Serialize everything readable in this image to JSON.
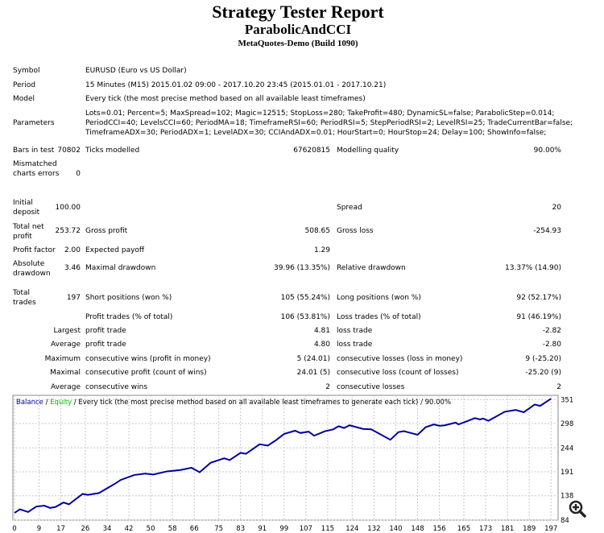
{
  "header": {
    "title": "Strategy Tester Report",
    "expert": "ParabolicAndCCI",
    "server": "MetaQuotes-Demo (Build 1090)"
  },
  "info": {
    "symbol_label": "Symbol",
    "symbol": "EURUSD (Euro vs US Dollar)",
    "period_label": "Period",
    "period": "15 Minutes (M15) 2015.01.02 09:00 - 2017.10.20 23:45 (2015.01.01 - 2017.10.21)",
    "model_label": "Model",
    "model": "Every tick (the most precise method based on all available least timeframes)",
    "params_label": "Parameters",
    "params": "Lots=0.01; Percent=5; MaxSpread=102; Magic=12515; StopLoss=280; TakeProfit=480; DynamicSL=false; ParabolicStep=0.014; PeriodCCI=40; LevelsCCI=60; PeriodMA=18; TimeframeRSI=60; PeriodRSI=5; StepPeriodRSI=2; LevelRSI=25; TradeCurrentBar=false; TimeframeADX=30; PeriodADX=1; LevelADX=30; CCIAndADX=0.01; HourStart=0; HourStop=24; Delay=100; ShowInfo=false;"
  },
  "stats": {
    "bars_label": "Bars in test",
    "bars": "70802",
    "ticks_label": "Ticks modelled",
    "ticks": "67620815",
    "quality_label": "Modelling quality",
    "quality": "90.00%",
    "mismatch_label": "Mismatched charts errors",
    "mismatch": "0",
    "deposit_label": "Initial deposit",
    "deposit": "100.00",
    "spread_label": "Spread",
    "spread": "20",
    "net_label": "Total net profit",
    "net": "253.72",
    "gross_profit_label": "Gross profit",
    "gross_profit": "508.65",
    "gross_loss_label": "Gross loss",
    "gross_loss": "-254.93",
    "pf_label": "Profit factor",
    "pf": "2.00",
    "payoff_label": "Expected payoff",
    "payoff": "1.29",
    "abs_dd_label": "Absolute drawdown",
    "abs_dd": "3.46",
    "max_dd_label": "Maximal drawdown",
    "max_dd": "39.96 (13.35%)",
    "rel_dd_label": "Relative drawdown",
    "rel_dd": "13.37% (14.90)",
    "trades_label": "Total trades",
    "trades": "197",
    "short_label": "Short positions (won %)",
    "short": "105 (55.24%)",
    "long_label": "Long positions (won %)",
    "long": "92 (52.17%)",
    "pt_label": "Profit trades (% of total)",
    "pt": "106 (53.81%)",
    "lt_label": "Loss trades (% of total)",
    "lt": "91 (46.19%)",
    "largest_label": "Largest",
    "lpt_label": "profit trade",
    "lpt": "4.81",
    "llt_label": "loss trade",
    "llt": "-2.82",
    "average_label": "Average",
    "apt_label": "profit trade",
    "apt": "4.80",
    "alt_label": "loss trade",
    "alt": "-2.80",
    "maximum_label": "Maximum",
    "mcw_label": "consecutive wins (profit in money)",
    "mcw": "5 (24.01)",
    "mcl_label": "consecutive losses (loss in money)",
    "mcl": "9 (-25.20)",
    "maximal_label": "Maximal",
    "mcp_label": "consecutive profit (count of wins)",
    "mcp": "24.01 (5)",
    "mclo_label": "consecutive loss (count of losses)",
    "mclo": "-25.20 (9)",
    "average2_label": "Average",
    "acw_label": "consecutive wins",
    "acw": "2",
    "acl_label": "consecutive losses",
    "acl": "2"
  },
  "chart_data": {
    "type": "line",
    "legend": {
      "balance": "Balance",
      "sep1": " / ",
      "equity": "Equity",
      "rest": " / Every tick (the most precise method based on all available least timeframes to generate each tick) / 90.00%"
    },
    "colors": {
      "balance": "#0000a0",
      "equity": "#00c000",
      "grid": "#c8c8c8"
    },
    "xticks": [
      0,
      9,
      17,
      26,
      34,
      42,
      50,
      58,
      66,
      75,
      83,
      91,
      99,
      107,
      115,
      124,
      132,
      140,
      148,
      156,
      165,
      173,
      181,
      189,
      197
    ],
    "yticks": [
      84,
      138,
      191,
      244,
      298,
      351
    ],
    "xlim": [
      0,
      199
    ],
    "ylim": [
      84,
      364
    ],
    "grid": true,
    "series": [
      {
        "x": [
          0,
          2,
          5,
          8,
          11,
          13,
          15,
          18,
          20,
          25,
          27,
          31,
          37,
          39,
          44,
          48,
          51,
          56,
          61,
          65,
          68,
          72,
          77,
          79,
          83,
          85,
          90,
          93,
          96,
          99,
          103,
          105,
          108,
          110,
          114,
          117,
          119,
          121,
          123,
          128,
          131,
          138,
          141,
          143,
          148,
          151,
          154,
          156,
          158,
          162,
          163,
          167,
          169,
          171,
          172,
          174,
          180,
          183,
          184,
          187,
          191,
          193,
          197
        ],
        "y": [
          100,
          108,
          102,
          114,
          116,
          111,
          113,
          123,
          119,
          142,
          140,
          144,
          165,
          173,
          184,
          187,
          185,
          192,
          195,
          200,
          190,
          211,
          221,
          217,
          233,
          231,
          252,
          249,
          261,
          275,
          282,
          277,
          280,
          271,
          281,
          285,
          292,
          288,
          294,
          286,
          285,
          262,
          279,
          281,
          273,
          290,
          296,
          293,
          294,
          300,
          296,
          305,
          310,
          307,
          309,
          304,
          324,
          327,
          328,
          323,
          340,
          337,
          353
        ]
      }
    ]
  },
  "zoom_icon": "zoom-in-icon"
}
